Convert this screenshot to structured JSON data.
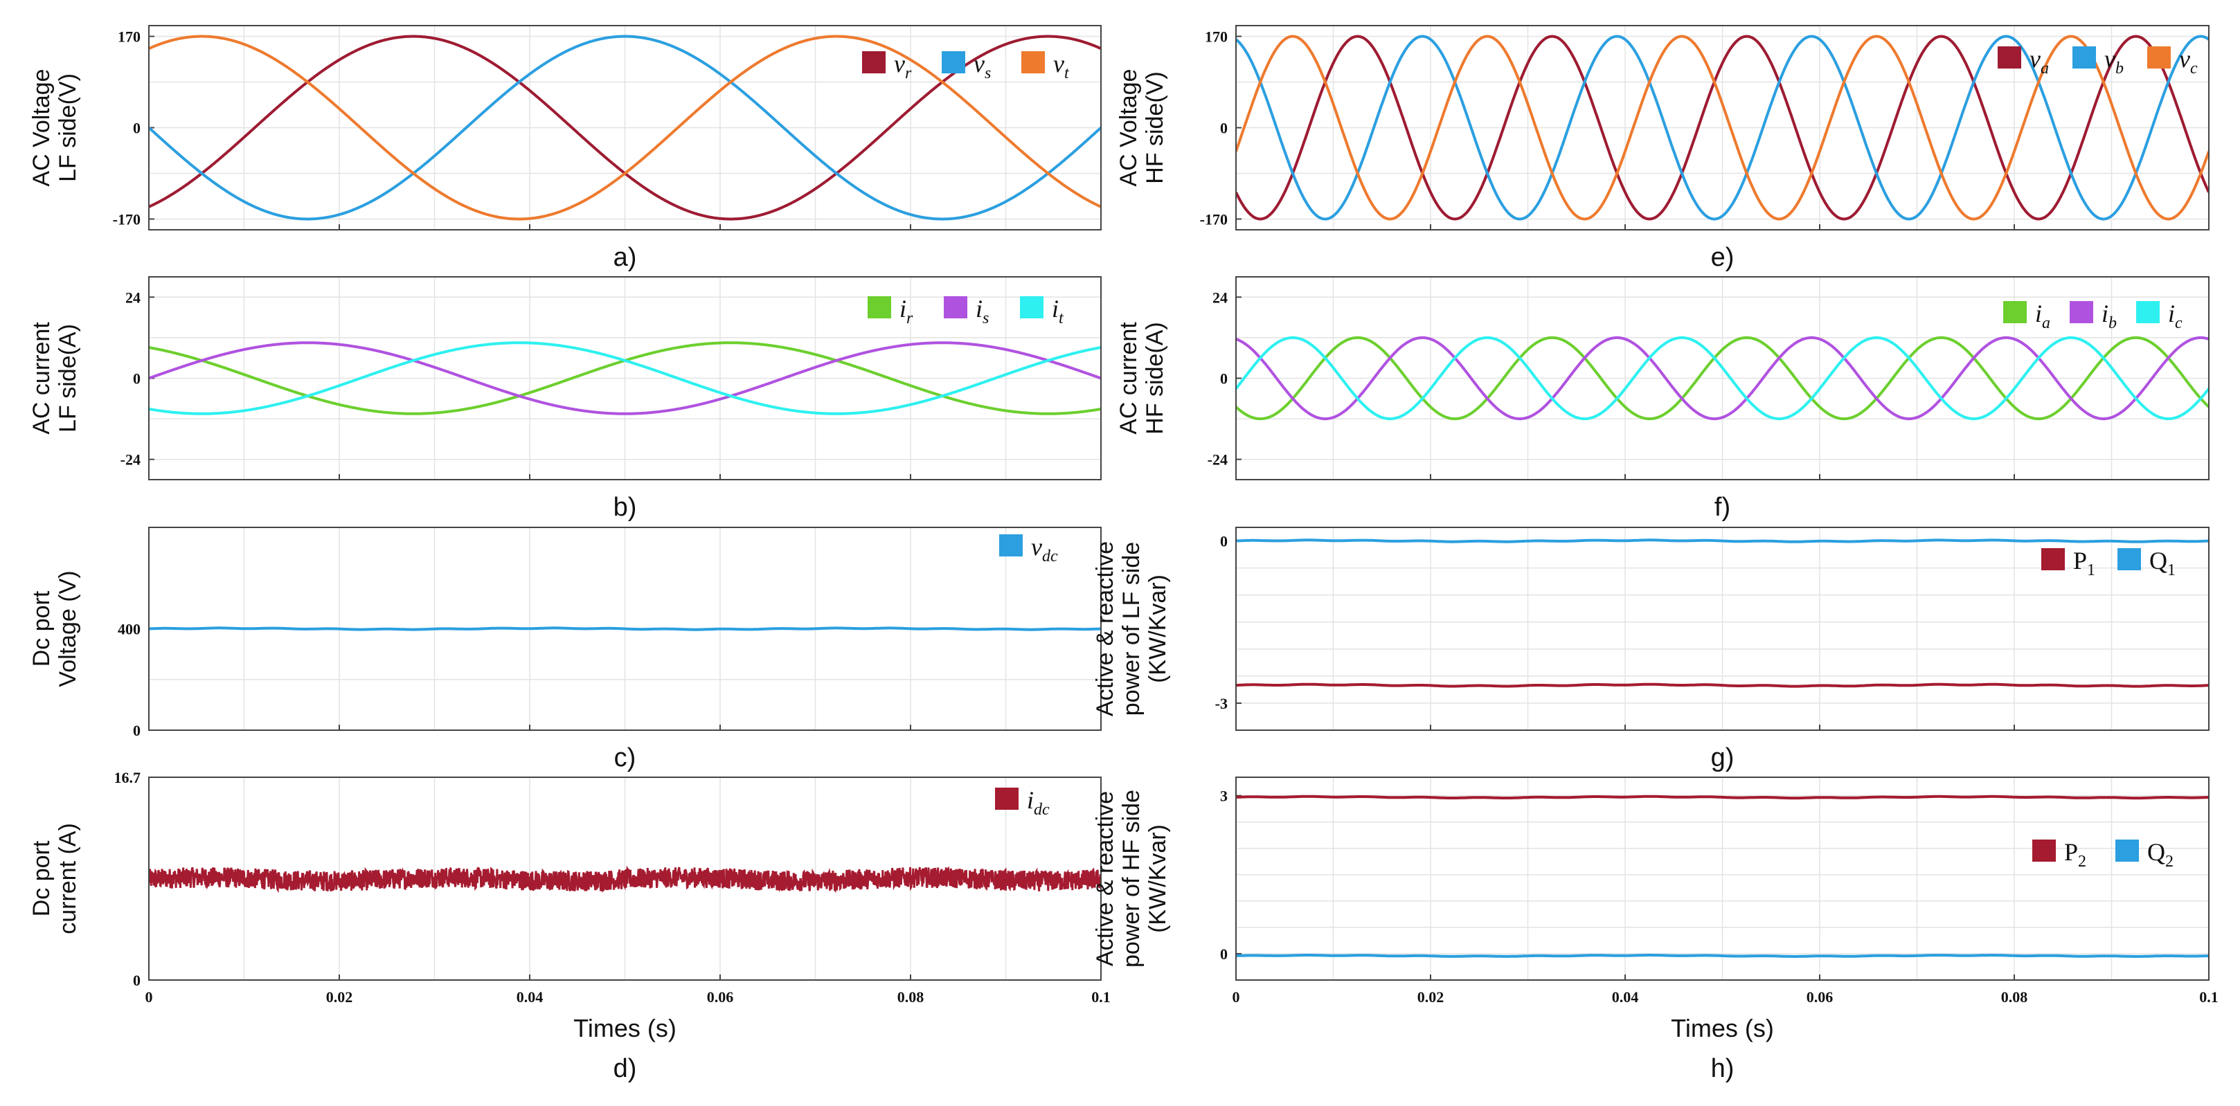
{
  "chart_data": [
    {
      "id": "a",
      "caption": "a)",
      "type": "line",
      "ylabel": [
        "AC Voltage",
        "LF side(V)"
      ],
      "xlim": [
        0,
        0.1
      ],
      "ylim": [
        -190,
        190
      ],
      "yticks": [
        {
          "v": 170,
          "label": "170"
        },
        {
          "v": 0,
          "label": "0"
        },
        {
          "v": -170,
          "label": "-170"
        }
      ],
      "xticks": [
        0,
        0.02,
        0.04,
        0.06,
        0.08,
        0.1
      ],
      "xtick_labels": [],
      "xlabel": "",
      "series": [
        {
          "sym": "v",
          "sub": "r",
          "color": "#9e1b32",
          "kind": "sine",
          "amp": 170,
          "freq": 15,
          "phase_deg": -60
        },
        {
          "sym": "v",
          "sub": "s",
          "color": "#2b9fe0",
          "kind": "sine",
          "amp": 170,
          "freq": 15,
          "phase_deg": 180
        },
        {
          "sym": "v",
          "sub": "t",
          "color": "#ee7a2e",
          "kind": "sine",
          "amp": 170,
          "freq": 15,
          "phase_deg": 60
        }
      ]
    },
    {
      "id": "b",
      "caption": "b)",
      "type": "line",
      "ylabel": [
        "AC current",
        "LF side(A)"
      ],
      "xlim": [
        0,
        0.1
      ],
      "ylim": [
        -30,
        30
      ],
      "yticks": [
        {
          "v": 24,
          "label": "24"
        },
        {
          "v": 0,
          "label": "0"
        },
        {
          "v": -24,
          "label": "-24"
        }
      ],
      "xticks": [
        0,
        0.02,
        0.04,
        0.06,
        0.08,
        0.1
      ],
      "xtick_labels": [],
      "xlabel": "",
      "series": [
        {
          "sym": "i",
          "sub": "r",
          "color": "#6ccf2e",
          "kind": "sine",
          "amp": 10.5,
          "freq": 15,
          "phase_deg": 120
        },
        {
          "sym": "i",
          "sub": "s",
          "color": "#b052e0",
          "kind": "sine",
          "amp": 10.5,
          "freq": 15,
          "phase_deg": 0
        },
        {
          "sym": "i",
          "sub": "t",
          "color": "#2ef0f0",
          "kind": "sine",
          "amp": 10.5,
          "freq": 15,
          "phase_deg": 240
        }
      ]
    },
    {
      "id": "c",
      "caption": "c)",
      "type": "line",
      "ylabel": [
        "Dc port",
        "Voltage (V)"
      ],
      "xlim": [
        0,
        0.1
      ],
      "ylim": [
        0,
        800
      ],
      "yticks": [
        {
          "v": 400,
          "label": "400"
        },
        {
          "v": 0,
          "label": "0"
        }
      ],
      "xticks": [
        0,
        0.02,
        0.04,
        0.06,
        0.08,
        0.1
      ],
      "xtick_labels": [],
      "xlabel": "",
      "series": [
        {
          "sym": "v",
          "sub": "dc",
          "color": "#2b9fe0",
          "kind": "const",
          "value": 400,
          "ripple": 2
        }
      ]
    },
    {
      "id": "d",
      "caption": "d)",
      "type": "line",
      "ylabel": [
        "Dc port",
        "current (A)"
      ],
      "xlim": [
        0,
        0.1
      ],
      "ylim": [
        0,
        16.7
      ],
      "yticks": [
        {
          "v": 16.7,
          "label": "16.7"
        },
        {
          "v": 0,
          "label": "0"
        }
      ],
      "xticks": [
        0,
        0.02,
        0.04,
        0.06,
        0.08,
        0.1
      ],
      "xtick_labels": [
        "0",
        "0.02",
        "0.04",
        "0.06",
        "0.08",
        "0.1"
      ],
      "xlabel": "Times (s)",
      "series": [
        {
          "sym": "i",
          "sub": "dc",
          "color": "#a51b30",
          "kind": "band",
          "value": 8.3,
          "spread": 0.85
        }
      ]
    },
    {
      "id": "e",
      "caption": "e)",
      "type": "line",
      "ylabel": [
        "AC Voltage",
        "HF side(V)"
      ],
      "xlim": [
        0,
        0.1
      ],
      "ylim": [
        -190,
        190
      ],
      "yticks": [
        {
          "v": 170,
          "label": "170"
        },
        {
          "v": 0,
          "label": "0"
        },
        {
          "v": -170,
          "label": "-170"
        }
      ],
      "xticks": [
        0,
        0.02,
        0.04,
        0.06,
        0.08,
        0.1
      ],
      "xtick_labels": [],
      "xlabel": "",
      "series": [
        {
          "sym": "v",
          "sub": "a",
          "color": "#9e1b32",
          "kind": "sine",
          "amp": 170,
          "freq": 50,
          "phase_deg": 225
        },
        {
          "sym": "v",
          "sub": "b",
          "color": "#2b9fe0",
          "kind": "sine",
          "amp": 170,
          "freq": 50,
          "phase_deg": 105
        },
        {
          "sym": "v",
          "sub": "c",
          "color": "#ee7a2e",
          "kind": "sine",
          "amp": 170,
          "freq": 50,
          "phase_deg": 345
        }
      ]
    },
    {
      "id": "f",
      "caption": "f)",
      "type": "line",
      "ylabel": [
        "AC current",
        "HF side(A)"
      ],
      "xlim": [
        0,
        0.1
      ],
      "ylim": [
        -30,
        30
      ],
      "yticks": [
        {
          "v": 24,
          "label": "24"
        },
        {
          "v": 0,
          "label": "0"
        },
        {
          "v": -24,
          "label": "-24"
        }
      ],
      "xticks": [
        0,
        0.02,
        0.04,
        0.06,
        0.08,
        0.1
      ],
      "xtick_labels": [],
      "xlabel": "",
      "series": [
        {
          "sym": "i",
          "sub": "a",
          "color": "#6ccf2e",
          "kind": "sine",
          "amp": 12,
          "freq": 50,
          "phase_deg": 225
        },
        {
          "sym": "i",
          "sub": "b",
          "color": "#b052e0",
          "kind": "sine",
          "amp": 12,
          "freq": 50,
          "phase_deg": 105
        },
        {
          "sym": "i",
          "sub": "c",
          "color": "#2ef0f0",
          "kind": "sine",
          "amp": 12,
          "freq": 50,
          "phase_deg": 345
        }
      ]
    },
    {
      "id": "g",
      "caption": "g)",
      "type": "line",
      "ylabel": [
        "Active & reactive",
        "power of LF side",
        "(KW/Kvar)"
      ],
      "xlim": [
        0,
        0.1
      ],
      "ylim": [
        -3.5,
        0.25
      ],
      "yticks": [
        {
          "v": 0,
          "label": "0"
        },
        {
          "v": -3,
          "label": "-3"
        }
      ],
      "minor_yticks": [
        -0.5,
        -1,
        -1.5,
        -2,
        -2.5
      ],
      "xticks": [
        0,
        0.02,
        0.04,
        0.06,
        0.08,
        0.1
      ],
      "xtick_labels": [],
      "xlabel": "",
      "series": [
        {
          "sym": "P",
          "sub": "1",
          "upright": true,
          "color": "#a51b30",
          "kind": "const",
          "value": -2.67,
          "ripple": 0.012
        },
        {
          "sym": "Q",
          "sub": "1",
          "upright": true,
          "color": "#2b9fe0",
          "kind": "const",
          "value": 0,
          "ripple": 0.01
        }
      ]
    },
    {
      "id": "h",
      "caption": "h)",
      "type": "line",
      "ylabel": [
        "Active & reactive",
        "power of HF side",
        "(KW/Kvar)"
      ],
      "xlim": [
        0,
        0.1
      ],
      "ylim": [
        -0.5,
        3.35
      ],
      "yticks": [
        {
          "v": 3,
          "label": "3"
        },
        {
          "v": 0,
          "label": "0"
        }
      ],
      "minor_yticks": [
        0.5,
        1,
        1.5,
        2,
        2.5
      ],
      "xticks": [
        0,
        0.02,
        0.04,
        0.06,
        0.08,
        0.1
      ],
      "xtick_labels": [
        "0",
        "0.02",
        "0.04",
        "0.06",
        "0.08",
        "0.1"
      ],
      "xlabel": "Times (s)",
      "series": [
        {
          "sym": "P",
          "sub": "2",
          "upright": true,
          "color": "#a51b30",
          "kind": "const",
          "value": 2.97,
          "ripple": 0.01
        },
        {
          "sym": "Q",
          "sub": "2",
          "upright": true,
          "color": "#2b9fe0",
          "kind": "const",
          "value": -0.04,
          "ripple": 0.008
        }
      ]
    }
  ]
}
